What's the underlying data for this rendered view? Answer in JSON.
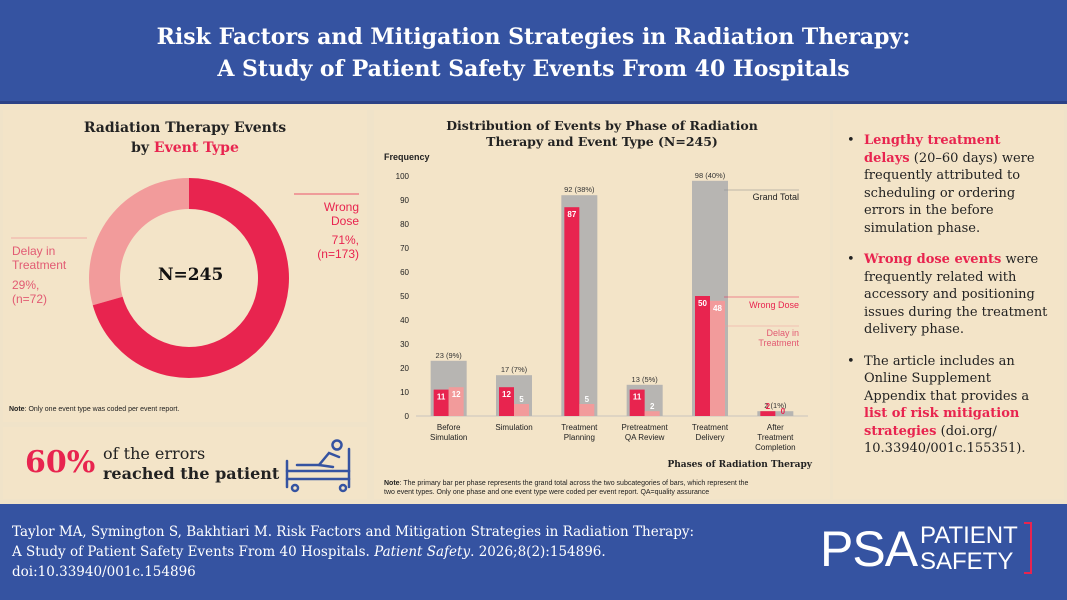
{
  "header": {
    "title_line1": "Risk Factors and Mitigation Strategies in Radiation Therapy:",
    "title_line2": "A Study of Patient Safety Events From 40 Hospitals"
  },
  "donut": {
    "title_line1": "Radiation Therapy Events",
    "title_prefix": "by ",
    "title_highlight": "Event Type",
    "center": "N=245",
    "wrong_dose": {
      "name_line1": "Wrong",
      "name_line2": "Dose",
      "pct": "71%,",
      "n": "(n=173)"
    },
    "delay": {
      "name_line1": "Delay in",
      "name_line2": "Treatment",
      "pct": "29%,",
      "n": "(n=72)"
    },
    "note_bold": "Note",
    "note": ": Only one event type was coded per event report."
  },
  "callout": {
    "percent": "60%",
    "line1": "of the errors",
    "line2": "reached the patient",
    "icon": "hospital-bed-patient-icon"
  },
  "chart_data": [
    {
      "type": "pie",
      "title": "Radiation Therapy Events by Event Type",
      "labels": [
        "Wrong Dose",
        "Delay in Treatment"
      ],
      "values": [
        173,
        72
      ],
      "percents": [
        71,
        29
      ],
      "colors": [
        "#e8244f",
        "#f29b9b"
      ]
    },
    {
      "type": "bar",
      "title": "Distribution of Events by Phase of Radiation Therapy and Event Type (N=245)",
      "xlabel": "Phases of Radiation Therapy",
      "ylabel": "Frequency",
      "ylim": [
        0,
        100
      ],
      "yticks": [
        0,
        10,
        20,
        30,
        40,
        50,
        60,
        70,
        80,
        90,
        100
      ],
      "categories": [
        [
          "Before",
          "Simulation"
        ],
        [
          "Simulation"
        ],
        [
          "Treatment",
          "Planning"
        ],
        [
          "Pretreatment",
          "QA Review"
        ],
        [
          "Treatment",
          "Delivery"
        ],
        [
          "After",
          "Treatment",
          "Completion"
        ]
      ],
      "series": [
        {
          "name": "Grand Total",
          "values": [
            23,
            17,
            92,
            13,
            98,
            2
          ],
          "labels": [
            "23 (9%)",
            "17 (7%)",
            "92 (38%)",
            "13 (5%)",
            "98 (40%)",
            "2 (1%)"
          ],
          "color": "#b7b5b2"
        },
        {
          "name": "Wrong Dose",
          "values": [
            11,
            12,
            87,
            11,
            50,
            2
          ],
          "color": "#e8244f"
        },
        {
          "name": "Delay in Treatment",
          "values": [
            12,
            5,
            5,
            2,
            48,
            0
          ],
          "color": "#f29b9b"
        }
      ],
      "legend": {
        "grand_total": "Grand Total",
        "wrong_dose": "Wrong Dose",
        "delay_line1": "Delay in",
        "delay_line2": "Treatment"
      }
    }
  ],
  "chart": {
    "title_line1": "Distribution of Events by Phase of Radiation",
    "title_line2": "Therapy and Event Type (N=245)",
    "note_bold": "Note",
    "note_line1": ": The primary bar per phase represents the grand total across the two subcategories of bars, which represent the",
    "note_line2": "two event types. Only one phase and one event type were coded per event report. QA=quality assurance"
  },
  "bullets": [
    {
      "red": "Lengthy treatment delays",
      "text": " (20–60 days) were frequently attributed to scheduling or ordering errors in the before simulation phase."
    },
    {
      "red": "Wrong dose events",
      "text": " were frequently related with accessory and positioning issues during the treatment delivery phase."
    },
    {
      "pre": "The article includes an Online Supplement Appendix that provides a ",
      "red": "list of risk mitigation strategies",
      "text": " (doi.org/ 10.33940/001c.155351)."
    }
  ],
  "footer": {
    "cite_line1": "Taylor MA, Symington S, Bakhtiari M. Risk Factors and Mitigation Strategies in Radiation Therapy:",
    "cite_line2_a": "A Study of Patient Safety Events From 40 Hospitals. ",
    "cite_journal": "Patient Safety",
    "cite_line2_b": ". 2026;8(2):154896.",
    "cite_line3": "doi:10.33940/001c.154896",
    "logo_psa": "PSA",
    "logo_word1": "PATIENT",
    "logo_word2": "SAFETY"
  },
  "colors": {
    "header_blue": "#3553a1",
    "red": "#e8244f",
    "pink": "#f29b9b",
    "gray": "#b7b5b2",
    "cream": "#f3e4c8"
  }
}
